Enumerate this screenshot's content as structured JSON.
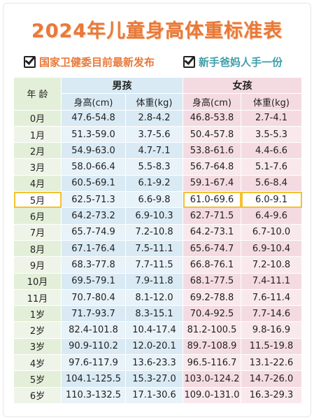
{
  "header": {
    "title": "2024年儿童身高体重标准表",
    "tags": [
      "国家卫健委目前最新发布",
      "新手爸妈人手一份"
    ]
  },
  "table": {
    "age_header": "年 龄",
    "groups": [
      "男孩",
      "女孩"
    ],
    "columns": [
      "身高(cm)",
      "体重(kg)",
      "身高(cm)",
      "体重(kg)"
    ],
    "rows": [
      [
        "0月",
        "47.6-54.8",
        "2.8-4.2",
        "46.8-53.8",
        "2.7-4.1"
      ],
      [
        "1月",
        "51.3-59.0",
        "3.7-5.6",
        "50.4-57.8",
        "3.5-5.3"
      ],
      [
        "2月",
        "54.9-63.0",
        "4.7-7.1",
        "53.8-61.6",
        "4.4-6.6"
      ],
      [
        "3月",
        "58.0-66.4",
        "5.5-8.3",
        "56.7-64.8",
        "5.1-7.6"
      ],
      [
        "4月",
        "60.5-69.1",
        "6.1-9.2",
        "59.1-67.4",
        "5.6-8.4"
      ],
      [
        "5月",
        "62.5-71.3",
        "6.6-9.8",
        "61.0-69.6",
        "6.0-9.1"
      ],
      [
        "6月",
        "64.2-73.2",
        "6.9-10.3",
        "62.7-71.5",
        "6.4-9.6"
      ],
      [
        "7月",
        "65.7-74.9",
        "7.2-10.8",
        "64.2-73.1",
        "6.7-10.0"
      ],
      [
        "8月",
        "67.1-76.4",
        "7.5-11.1",
        "65.6-74.7",
        "6.9-10.4"
      ],
      [
        "9月",
        "68.3-77.8",
        "7.7-11.5",
        "66.8-76.1",
        "7.2-10.8"
      ],
      [
        "10月",
        "69.5-79.1",
        "7.9-11.8",
        "68.1-77.5",
        "7.4-11.1"
      ],
      [
        "11月",
        "70.7-80.4",
        "8.1-12.0",
        "69.2-78.8",
        "7.6-11.4"
      ],
      [
        "1岁",
        "71.7-93.7",
        "8.3-15.1",
        "70.4-92.5",
        "7.7-14.6"
      ],
      [
        "2岁",
        "82.4-101.8",
        "10.4-17.4",
        "81.2-100.5",
        "9.8-16.9"
      ],
      [
        "3岁",
        "90.9-110.2",
        "12.0-20.1",
        "89.7-108.9",
        "11.5-19.8"
      ],
      [
        "4岁",
        "97.6-117.9",
        "13.6-23.3",
        "96.5-116.7",
        "13.1-22.6"
      ],
      [
        "5岁",
        "104.1-125.5",
        "15.3-27.0",
        "103.0-124.2",
        "14.7-26.0"
      ],
      [
        "6岁",
        "110.3-132.5",
        "17.1-30.6",
        "109.0-131.0",
        "16.3-29.3"
      ]
    ]
  }
}
